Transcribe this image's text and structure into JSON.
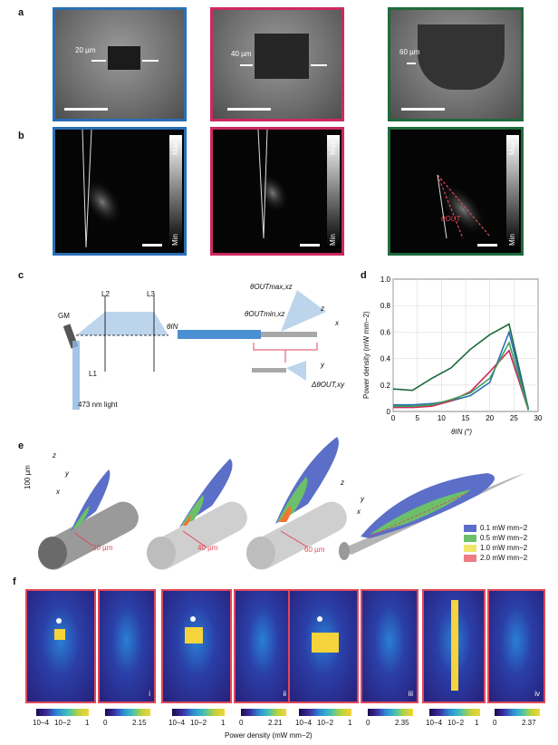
{
  "panels": {
    "a": "a",
    "b": "b",
    "c": "c",
    "d": "d",
    "e": "e",
    "f": "f"
  },
  "panel_a": {
    "widths": [
      "20 µm",
      "40 µm",
      "60 µm"
    ],
    "frame_colors": [
      "#2a6fb4",
      "#cc2a5e",
      "#1e6b3c"
    ]
  },
  "panel_b": {
    "cbar_max": "Max",
    "cbar_min": "Min",
    "theta_label": "θOUT"
  },
  "panel_c": {
    "GM": "GM",
    "L1": "L1",
    "L2": "L2",
    "L3": "L3",
    "theta_in": "θIN",
    "light": "473 nm light",
    "theta_max": "θOUTmax,xz",
    "theta_min": "θOUTmin,xz",
    "delta_theta": "ΔθOUT,xy",
    "axis_z": "z",
    "axis_x": "x",
    "axis_y": "y"
  },
  "chart_data": {
    "type": "line",
    "x": [
      0,
      4,
      8,
      12,
      16,
      20,
      24,
      28
    ],
    "xlabel": "θIN (°)",
    "ylabel": "Power density (mW mm−2)",
    "xlim": [
      0,
      30
    ],
    "ylim": [
      0,
      1.0
    ],
    "xticks": [
      "0",
      "5",
      "10",
      "15",
      "20",
      "25",
      "30"
    ],
    "yticks": [
      "0",
      "0.2",
      "0.4",
      "0.6",
      "0.8",
      "1.0"
    ],
    "grid": true,
    "series": [
      {
        "color": "#1e6b3c",
        "values": [
          0.17,
          0.16,
          0.25,
          0.33,
          0.47,
          0.58,
          0.66,
          0.02
        ]
      },
      {
        "color": "#2a6fb4",
        "values": [
          0.05,
          0.05,
          0.06,
          0.08,
          0.12,
          0.22,
          0.6,
          0.01
        ]
      },
      {
        "color": "#cc2a5e",
        "values": [
          0.03,
          0.03,
          0.04,
          0.08,
          0.15,
          0.3,
          0.46,
          0.01
        ]
      },
      {
        "color": "#3fa05a",
        "values": [
          0.04,
          0.04,
          0.05,
          0.09,
          0.14,
          0.25,
          0.52,
          0.01
        ]
      }
    ]
  },
  "panel_e": {
    "scale": "100 µm",
    "widths": [
      "20 µm",
      "40 µm",
      "60 µm"
    ],
    "axis_z": "z",
    "axis_y": "y",
    "axis_x": "x",
    "legend": [
      {
        "label": "0.1 mW mm−2",
        "color": "#5b6fc8"
      },
      {
        "label": "0.5 mW mm−2",
        "color": "#6cc06a"
      },
      {
        "label": "1.0 mW mm−2",
        "color": "#f2e66a"
      },
      {
        "label": "2.0 mW mm−2",
        "color": "#f07a85"
      }
    ]
  },
  "panel_f": {
    "log_ticks": [
      "10−4",
      "10−2",
      "1"
    ],
    "linear": [
      {
        "min": "0",
        "max": "2.15",
        "roman": "i"
      },
      {
        "min": "0",
        "max": "2.21",
        "roman": "ii"
      },
      {
        "min": "0",
        "max": "2.35",
        "roman": "iii"
      },
      {
        "min": "0",
        "max": "2.37",
        "roman": "iv"
      }
    ],
    "xlabel": "Power density (mW mm−2)"
  }
}
